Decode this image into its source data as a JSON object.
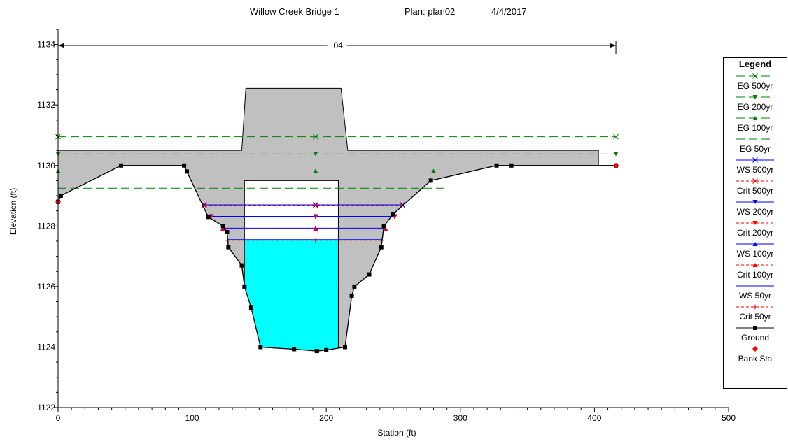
{
  "title": {
    "project": "Willow Creek Bridge 1",
    "plan": "Plan: plan02",
    "date": "4/4/2017"
  },
  "colors": {
    "ground": "#000000",
    "fill": "#c0c0c0",
    "water": "#00ffff",
    "eg": "#008000",
    "ws": "#0000ff",
    "crit": "#ff0000",
    "bank": "#ff0000"
  },
  "chart_data": {
    "type": "line",
    "xlabel": "Station (ft)",
    "ylabel": "Elevation (ft)",
    "xlim": [
      0,
      500
    ],
    "ylim": [
      1122,
      1134.5
    ],
    "x_ticks": [
      0,
      100,
      200,
      300,
      400,
      500
    ],
    "y_ticks": [
      1122,
      1124,
      1126,
      1128,
      1130,
      1132,
      1134
    ],
    "manning_n": {
      "label": ".04",
      "from": 0,
      "to": 416
    },
    "ground": [
      [
        0,
        1128.8
      ],
      [
        2,
        1129
      ],
      [
        47,
        1130
      ],
      [
        94,
        1130
      ],
      [
        96,
        1129.8
      ],
      [
        112,
        1128.3
      ],
      [
        123,
        1128
      ],
      [
        126,
        1127.8
      ],
      [
        127,
        1127.3
      ],
      [
        137,
        1126.7
      ],
      [
        139,
        1126
      ],
      [
        144,
        1125.3
      ],
      [
        151,
        1124
      ],
      [
        176,
        1123.93
      ],
      [
        193,
        1123.87
      ],
      [
        200,
        1123.9
      ],
      [
        214,
        1124
      ],
      [
        219,
        1125.7
      ],
      [
        221,
        1126
      ],
      [
        232,
        1126.4
      ],
      [
        241,
        1127.3
      ],
      [
        243,
        1128
      ],
      [
        250,
        1128.4
      ],
      [
        278,
        1129.5
      ],
      [
        327,
        1130
      ],
      [
        338,
        1130
      ],
      [
        416,
        1130
      ]
    ],
    "bank_stations": [
      [
        0,
        1128.8
      ],
      [
        416,
        1130
      ]
    ],
    "bridge": {
      "low_chord": 1129.5,
      "road_top": 1130.5,
      "deck_top": 1132.55,
      "opening": [
        139,
        209
      ],
      "deck_outline": [
        [
          0,
          1130.5
        ],
        [
          137,
          1130.5
        ],
        [
          140,
          1132.55
        ],
        [
          211,
          1132.55
        ],
        [
          216,
          1130.5
        ],
        [
          403,
          1130.5
        ],
        [
          403,
          1130
        ],
        [
          416,
          1130
        ]
      ]
    },
    "water_surface": 1127.55,
    "series": [
      {
        "name": "EG 500yr",
        "y": 1130.95,
        "x": [
          0,
          416
        ],
        "style": "eg",
        "marker": "x"
      },
      {
        "name": "EG 200yr",
        "y": 1130.38,
        "x": [
          0,
          416
        ],
        "style": "eg",
        "marker": "tri-down"
      },
      {
        "name": "EG 100yr",
        "y": 1129.82,
        "x": [
          0,
          280
        ],
        "style": "eg",
        "marker": "tri-up"
      },
      {
        "name": "EG 50yr",
        "y": 1129.25,
        "x": [
          0,
          290
        ],
        "style": "eg",
        "marker": "none"
      },
      {
        "name": "WS 500yr",
        "y": 1128.7,
        "x": [
          109,
          257
        ],
        "style": "ws",
        "marker": "x"
      },
      {
        "name": "Crit 500yr",
        "y": 1128.7,
        "x": [
          109,
          257
        ],
        "style": "crit",
        "marker": "x"
      },
      {
        "name": "WS 200yr",
        "y": 1128.32,
        "x": [
          114,
          251
        ],
        "style": "ws",
        "marker": "tri-down"
      },
      {
        "name": "Crit 200yr",
        "y": 1128.32,
        "x": [
          114,
          251
        ],
        "style": "crit",
        "marker": "tri-down"
      },
      {
        "name": "WS 100yr",
        "y": 1127.93,
        "x": [
          123,
          244
        ],
        "style": "ws",
        "marker": "tri-up"
      },
      {
        "name": "Crit 100yr",
        "y": 1127.93,
        "x": [
          123,
          244
        ],
        "style": "crit",
        "marker": "tri-up"
      },
      {
        "name": "WS 50yr",
        "y": 1127.55,
        "x": [
          126,
          241
        ],
        "style": "ws",
        "marker": "none"
      },
      {
        "name": "Crit 50yr",
        "y": 1127.55,
        "x": [
          126,
          241
        ],
        "style": "crit",
        "marker": "plus"
      }
    ],
    "legend": {
      "title": "Legend",
      "position": "right",
      "items": [
        {
          "name": "EG 500yr",
          "style": "eg",
          "marker": "x"
        },
        {
          "name": "EG 200yr",
          "style": "eg",
          "marker": "tri-down"
        },
        {
          "name": "EG 100yr",
          "style": "eg",
          "marker": "tri-up"
        },
        {
          "name": "EG 50yr",
          "style": "eg",
          "marker": "none"
        },
        {
          "name": "WS 500yr",
          "style": "ws",
          "marker": "x"
        },
        {
          "name": "Crit 500yr",
          "style": "crit",
          "marker": "x"
        },
        {
          "name": "WS 200yr",
          "style": "ws",
          "marker": "tri-down"
        },
        {
          "name": "Crit 200yr",
          "style": "crit",
          "marker": "tri-down"
        },
        {
          "name": "WS 100yr",
          "style": "ws",
          "marker": "tri-up"
        },
        {
          "name": "Crit 100yr",
          "style": "crit",
          "marker": "tri-up"
        },
        {
          "name": "WS 50yr",
          "style": "ws",
          "marker": "none"
        },
        {
          "name": "Crit 50yr",
          "style": "crit",
          "marker": "plus"
        },
        {
          "name": "Ground",
          "style": "ground",
          "marker": "square"
        },
        {
          "name": "Bank Sta",
          "style": "bank",
          "marker": "diamond"
        }
      ]
    }
  }
}
